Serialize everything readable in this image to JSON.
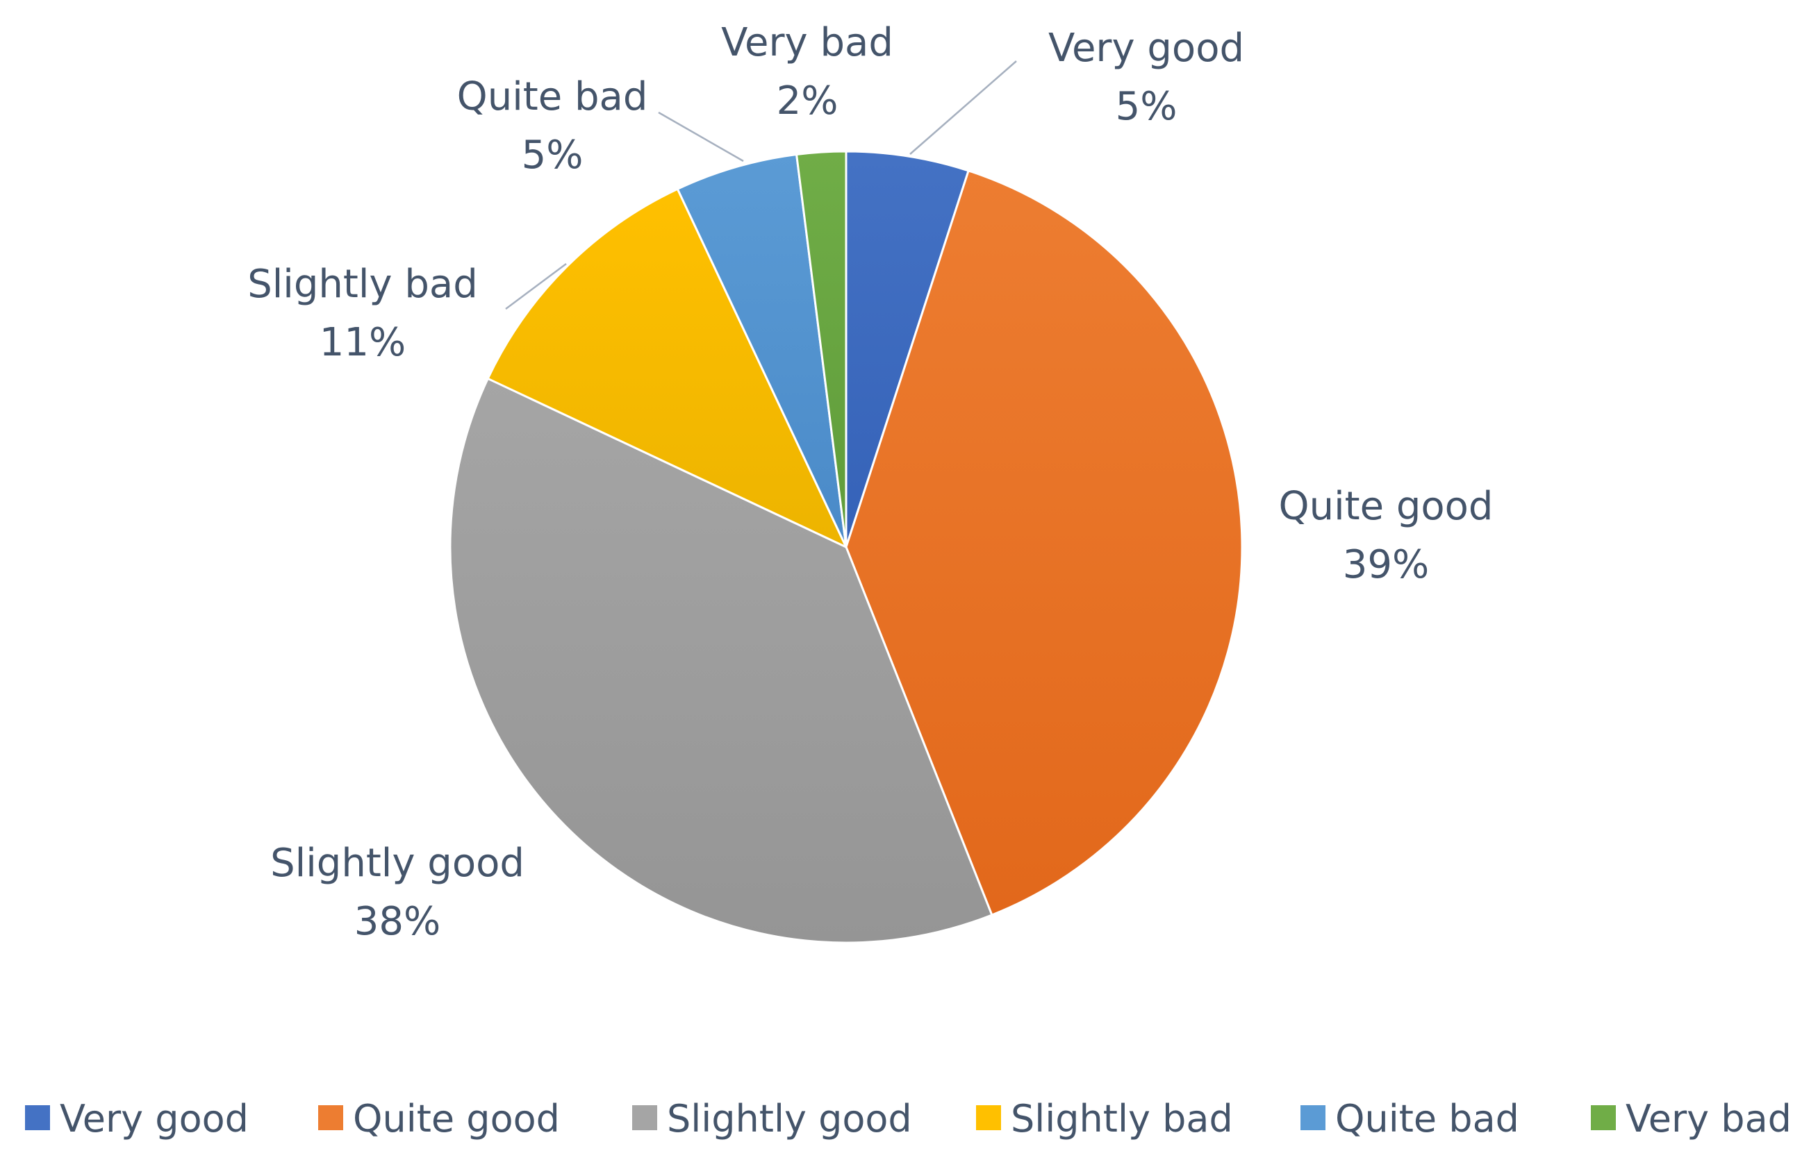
{
  "chart_data": {
    "type": "pie",
    "title": "",
    "start_angle_deg": 0,
    "direction": "clockwise",
    "slices": [
      {
        "label": "Very good",
        "value": 5,
        "display": "5%",
        "color": "#4472C4",
        "color_dark": "#3562B8"
      },
      {
        "label": "Quite good",
        "value": 39,
        "display": "39%",
        "color": "#ED7D31",
        "color_dark": "#E2681B"
      },
      {
        "label": "Slightly good",
        "value": 38,
        "display": "38%",
        "color": "#A5A5A5",
        "color_dark": "#959595"
      },
      {
        "label": "Slightly bad",
        "value": 11,
        "display": "11%",
        "color": "#FFC000",
        "color_dark": "#EDB400"
      },
      {
        "label": "Quite bad",
        "value": 5,
        "display": "5%",
        "color": "#5B9BD5",
        "color_dark": "#4A8AC8"
      },
      {
        "label": "Very bad",
        "value": 2,
        "display": "2%",
        "color": "#70AD47",
        "color_dark": "#5F9C3A"
      }
    ],
    "legend": {
      "position": "bottom",
      "entries": [
        "Very good",
        "Quite good",
        "Slightly good",
        "Slightly bad",
        "Quite bad",
        "Very bad"
      ]
    },
    "data_labels": {
      "show_category": true,
      "show_percent": true,
      "leader_lines": true
    }
  },
  "theme": {
    "label_color": "#44546A",
    "leader_line_color": "#A6B0BF",
    "slice_border_color": "#FFFFFF",
    "background": "#FFFFFF"
  }
}
